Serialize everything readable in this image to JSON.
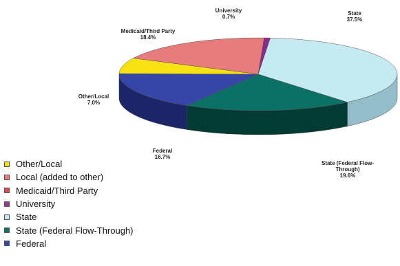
{
  "chart_data": {
    "type": "pie",
    "title": "",
    "slices": [
      {
        "name": "State",
        "value": 37.5,
        "label": "State",
        "value_label": "37.5%",
        "color": "#c6eaf2",
        "side": "#93bec9"
      },
      {
        "name": "State (Federal Flow-Through)",
        "value": 19.6,
        "label": "State (Federal Flow-\nThrough)",
        "value_label": "19.6%",
        "color": "#0b7066",
        "side": "#033a34"
      },
      {
        "name": "Federal",
        "value": 16.7,
        "label": "Federal",
        "value_label": "16.7%",
        "color": "#3545a8",
        "side": "#1b2568"
      },
      {
        "name": "Other/Local",
        "value": 7.0,
        "label": "Other/Local",
        "value_label": "7.0%",
        "color": "#f6e213",
        "side": "#b3a30a"
      },
      {
        "name": "Medicaid/Third Party",
        "value": 18.4,
        "label": "Medicaid/Third Party",
        "value_label": "18.4%",
        "color": "#e87b7b",
        "side": "#a64949"
      },
      {
        "name": "University",
        "value": 0.7,
        "label": "University",
        "value_label": "0.7%",
        "color": "#8a2a8a",
        "side": "#5a175a"
      }
    ],
    "legend": {
      "placement": "bottom-left",
      "items": [
        {
          "label": "Other/Local",
          "color": "#f6e213"
        },
        {
          "label": "Local (added to other)",
          "color": "#e87b7b"
        },
        {
          "label": "Medicaid/Third Party",
          "color": "#e04a55"
        },
        {
          "label": "University",
          "color": "#9b3a8a"
        },
        {
          "label": "State",
          "color": "#c6eaf2"
        },
        {
          "label": "State (Federal Flow-Through)",
          "color": "#0b7066"
        },
        {
          "label": "Federal",
          "color": "#3545a8"
        }
      ]
    }
  }
}
